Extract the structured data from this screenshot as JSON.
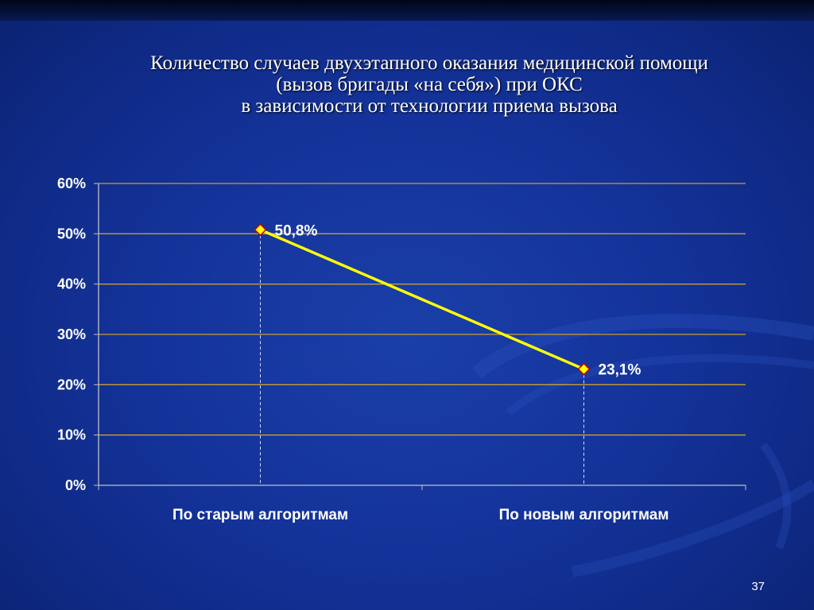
{
  "slide": {
    "title_lines": [
      "Количество случаев двухэтапного оказания медицинской помощи",
      "(вызов бригады «на себя») при ОКС",
      "в зависимости от технологии приема вызова"
    ],
    "page_number": "37"
  },
  "chart_data": {
    "type": "line",
    "categories": [
      "По старым алгоритмам",
      "По новым алгоритмам"
    ],
    "series": [
      {
        "values": [
          50.8,
          23.1
        ],
        "data_labels": [
          "50,8%",
          "23,1%"
        ],
        "color": "#ffff00",
        "marker": "diamond"
      }
    ],
    "ylim": [
      0,
      60
    ],
    "y_ticks": [
      0,
      10,
      20,
      30,
      40,
      50,
      60
    ],
    "y_tick_labels": [
      "0%",
      "10%",
      "20%",
      "30%",
      "40%",
      "50%",
      "60%"
    ],
    "grid": true,
    "drop_lines": true,
    "colors": {
      "gridline": "#c8a030",
      "axis": "#c0c0c0",
      "text": "#ffffff",
      "line": "#ffff00",
      "marker_fill": "#ffff00",
      "marker_stroke": "#c00000"
    }
  }
}
